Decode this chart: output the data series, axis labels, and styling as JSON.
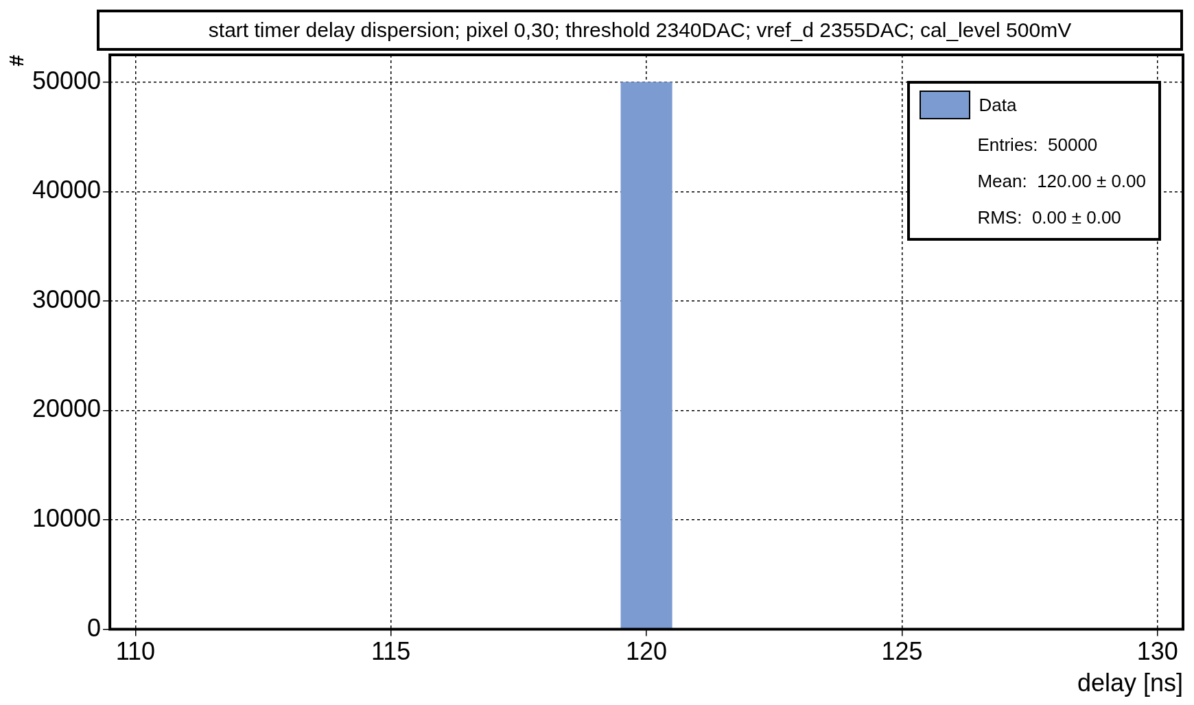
{
  "chart_data": {
    "type": "histogram",
    "title": "start timer delay dispersion; pixel 0,30; threshold 2340DAC; vref_d 2355DAC; cal_level 500mV",
    "xlabel": "delay [ns]",
    "ylabel": "#",
    "bins": [
      119.5,
      120.5
    ],
    "series": [
      {
        "name": "Data",
        "color": "#7b9bd1",
        "values": [
          50000
        ]
      }
    ],
    "xlim": [
      109.5,
      130.5
    ],
    "xticks": [
      110,
      115,
      120,
      125,
      130
    ],
    "ylim": [
      0,
      52500
    ],
    "yticks": [
      0,
      10000,
      20000,
      30000,
      40000,
      50000
    ],
    "grid": true,
    "legend": "top right",
    "annotations": [
      "Entries:  50000",
      "Mean:  120.00 ± 0.00",
      "RMS:  0.00 ± 0.00"
    ]
  }
}
